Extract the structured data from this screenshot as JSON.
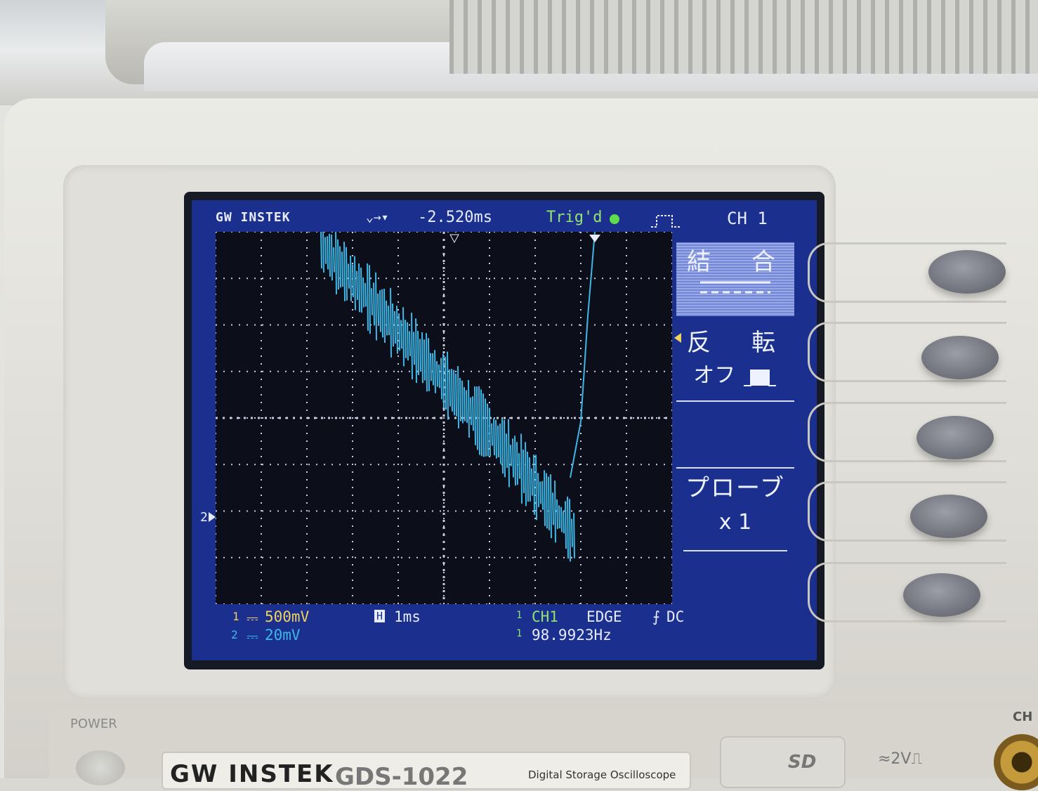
{
  "screen": {
    "brand": "GW INSTEK",
    "horizontal_position": "-2.520ms",
    "trigger_status": "Trig'd",
    "channel_title": "CH 1",
    "ch1_scale": "500mV",
    "ch2_scale": "20mV",
    "ch1_marker": "1",
    "ch2_marker": "2",
    "timebase_marker": "H",
    "timebase": "1ms",
    "trigger_source": "CH1",
    "trigger_type": "EDGE",
    "trigger_coupling": "DC",
    "frequency": "98.9923Hz",
    "source_marker": "1",
    "menu": {
      "coupling_title": "結　合",
      "invert_title": "反　転",
      "invert_value": "オフ",
      "probe_title": "プローブ",
      "probe_value": "x 1"
    },
    "colors": {
      "screen_bg": "#1b2f8f",
      "trace": "#3fb7e6",
      "trigger_text": "#93e36e",
      "scale_text": "#f0d25c"
    }
  },
  "body": {
    "power_label": "POWER",
    "brand_plate": "GW INSTEK",
    "model": "GDS-1022",
    "description": "Digital Storage Oscilloscope",
    "sd_label": "SD",
    "cal_label": "≈2V⎍",
    "connector_label": "CH"
  }
}
